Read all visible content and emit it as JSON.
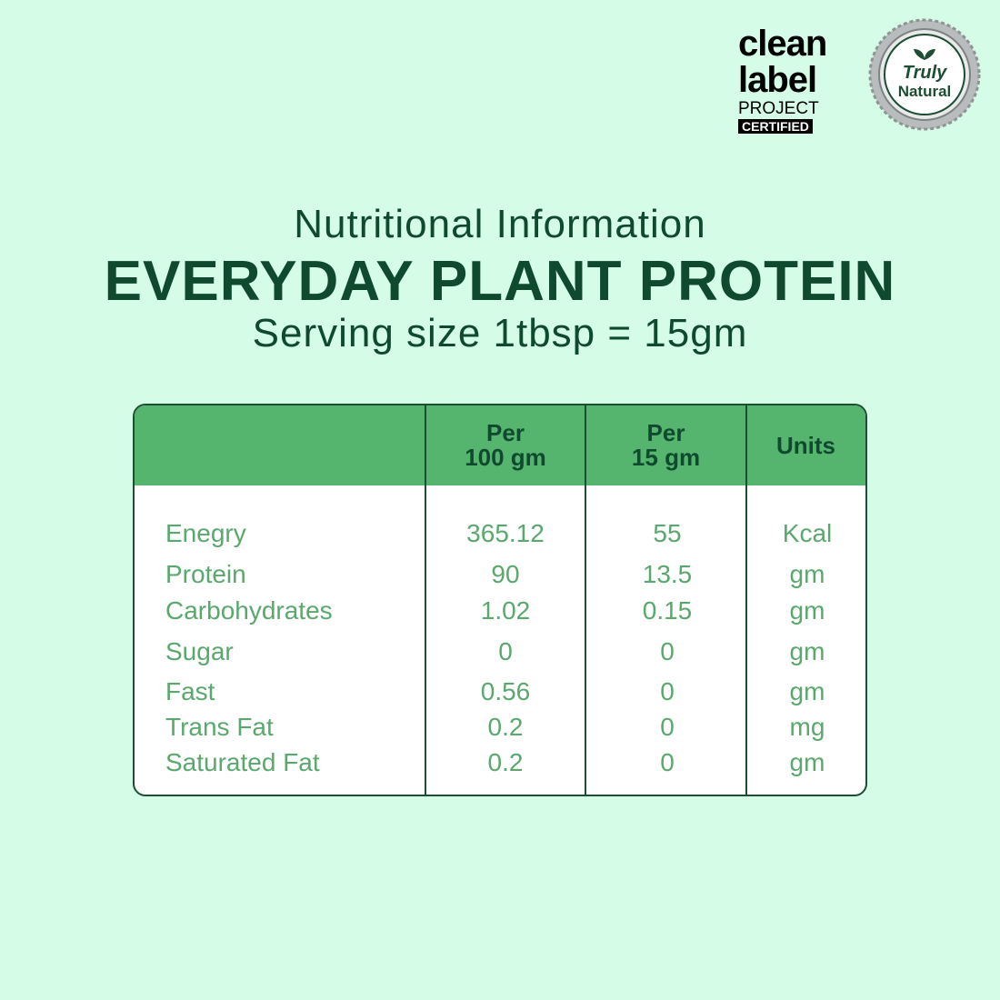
{
  "logos": {
    "clean_label": {
      "line1": "clean",
      "line2": "label",
      "line3": "PROJECT",
      "badge": "CERTIFIED"
    },
    "truly_natural": {
      "line1": "Truly",
      "line2": "Natural"
    }
  },
  "header": {
    "title": "Nutritional Information",
    "product": "EVERYDAY PLANT PROTEIN",
    "serving": "Serving size 1tbsp = 15gm"
  },
  "table": {
    "columns": [
      [
        "Per",
        "100 gm"
      ],
      [
        "Per",
        "15 gm"
      ],
      [
        "Units"
      ]
    ],
    "rows": [
      [
        "Enegry",
        "365.12",
        "55",
        "Kcal"
      ],
      [
        "Protein",
        "90",
        "13.5",
        "gm"
      ],
      [
        "Carbohydrates",
        "1.02",
        "0.15",
        "gm"
      ],
      [
        "Sugar",
        "0",
        "0",
        "gm"
      ],
      [
        "Fast",
        "0.56",
        "0",
        "gm"
      ],
      [
        "Trans Fat",
        "0.2",
        "0",
        "mg"
      ],
      [
        "Saturated Fat",
        "0.2",
        "0",
        "gm"
      ]
    ]
  }
}
